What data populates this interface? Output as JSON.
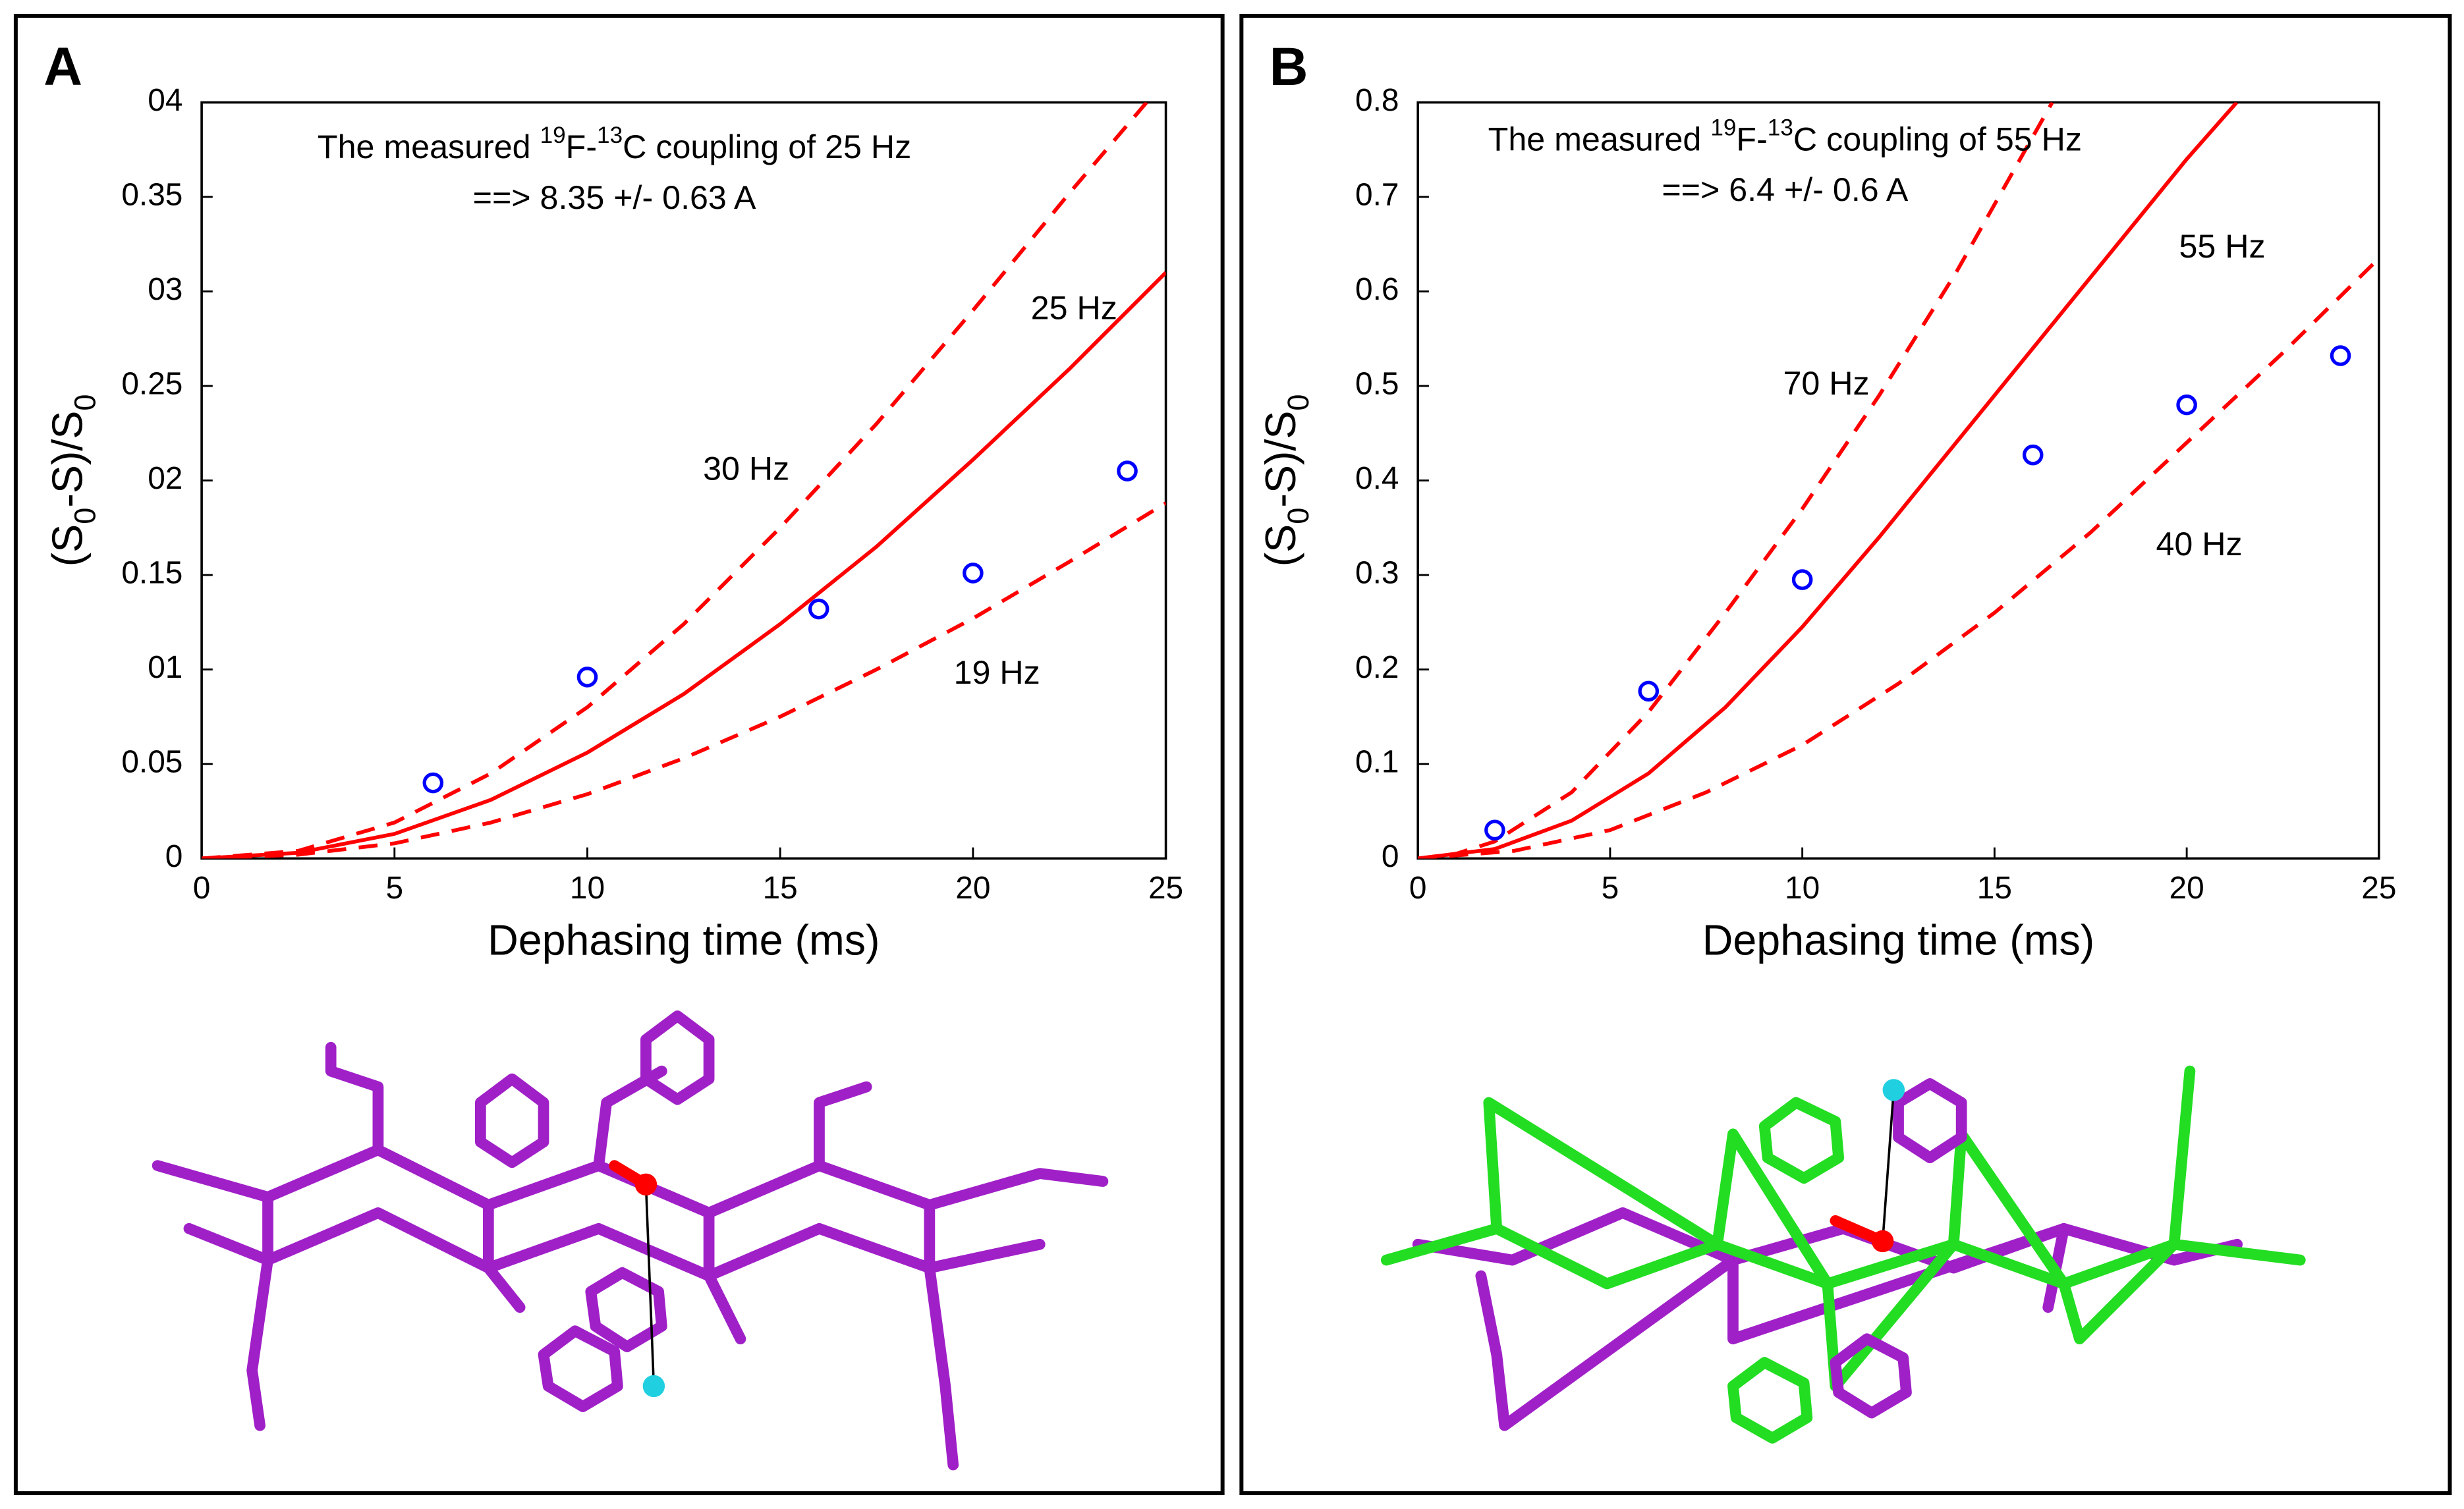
{
  "chart_data": [
    {
      "type": "line",
      "label": "A",
      "note": [
        [
          {
            "text": "The measured "
          },
          {
            "text": "19",
            "sup": true
          },
          {
            "text": "F-"
          },
          {
            "text": "13",
            "sup": true
          },
          {
            "text": "C coupling of 25 Hz"
          }
        ],
        [
          {
            "text": "==> 8.35 +/- 0.63 A"
          }
        ]
      ],
      "xlabel": "Dephasing time (ms)",
      "ylabel": [
        {
          "text": "(S"
        },
        {
          "text": "0",
          "sub": true
        },
        {
          "text": "-S)/S"
        },
        {
          "text": "0",
          "sub": true
        }
      ],
      "xlim": [
        0,
        25
      ],
      "ylim": [
        0,
        0.4
      ],
      "xticks": [
        0,
        5,
        10,
        15,
        20,
        25
      ],
      "yticks": [
        0,
        0.05,
        {
          "value": 0.1,
          "label": "01"
        },
        0.15,
        {
          "value": 0.2,
          "label": "02"
        },
        0.25,
        {
          "value": 0.3,
          "label": "03"
        },
        0.35,
        {
          "value": 0.4,
          "label": "04"
        }
      ],
      "series": [
        {
          "name": "25 Hz",
          "color": "#ff0000",
          "style": "solid",
          "x": [
            0,
            2.5,
            5,
            7.5,
            10,
            12.5,
            15,
            17.5,
            20,
            22.5,
            25
          ],
          "values": [
            0,
            0.003,
            0.013,
            0.031,
            0.056,
            0.087,
            0.124,
            0.165,
            0.211,
            0.259,
            0.31
          ]
        },
        {
          "name": "30 Hz",
          "color": "#ff0000",
          "style": "dashed",
          "x": [
            0,
            2.5,
            5,
            7.5,
            10,
            12.5,
            15,
            17.5,
            20,
            22.5,
            24.5
          ],
          "values": [
            0,
            0.004,
            0.019,
            0.045,
            0.08,
            0.124,
            0.175,
            0.23,
            0.29,
            0.352,
            0.4
          ]
        },
        {
          "name": "19 Hz",
          "color": "#ff0000",
          "style": "dashed",
          "x": [
            0,
            2.5,
            5,
            7.5,
            10,
            12.5,
            15,
            17.5,
            20,
            22.5,
            25
          ],
          "values": [
            0,
            0.002,
            0.008,
            0.019,
            0.034,
            0.053,
            0.075,
            0.1,
            0.127,
            0.157,
            0.188
          ]
        },
        {
          "color": "#0000ff",
          "style": "marker",
          "x": [
            6,
            10,
            16,
            20,
            24
          ],
          "values": [
            0.04,
            0.096,
            0.132,
            0.151,
            0.205
          ]
        }
      ]
    },
    {
      "type": "line",
      "label": "B",
      "note": [
        [
          {
            "text": "The measured "
          },
          {
            "text": "19",
            "sup": true
          },
          {
            "text": "F-"
          },
          {
            "text": "13",
            "sup": true
          },
          {
            "text": "C coupling of 55 Hz"
          }
        ],
        [
          {
            "text": "==> 6.4 +/- 0.6 A"
          }
        ]
      ],
      "xlabel": "Dephasing time (ms)",
      "ylabel": [
        {
          "text": "(S"
        },
        {
          "text": "0",
          "sub": true
        },
        {
          "text": "-S)/S"
        },
        {
          "text": "0",
          "sub": true
        }
      ],
      "xlim": [
        0,
        25
      ],
      "ylim": [
        0,
        0.8
      ],
      "xticks": [
        0,
        5,
        10,
        15,
        20,
        25
      ],
      "yticks": [
        0,
        0.1,
        0.2,
        0.3,
        0.4,
        0.5,
        0.6,
        0.7,
        0.8
      ],
      "series": [
        {
          "name": "55 Hz",
          "color": "#ff0000",
          "style": "solid",
          "x": [
            0,
            2,
            4,
            6,
            8,
            10,
            12,
            14,
            16,
            18,
            20,
            21.3
          ],
          "values": [
            0,
            0.01,
            0.04,
            0.09,
            0.16,
            0.245,
            0.34,
            0.44,
            0.54,
            0.64,
            0.74,
            0.8
          ]
        },
        {
          "name": "70 Hz",
          "color": "#ff0000",
          "style": "dashed",
          "x": [
            0,
            1,
            2,
            4,
            6,
            8,
            10,
            12,
            14,
            16.5
          ],
          "values": [
            0,
            0.005,
            0.018,
            0.07,
            0.155,
            0.26,
            0.37,
            0.49,
            0.62,
            0.8
          ]
        },
        {
          "name": "40 Hz",
          "color": "#ff0000",
          "style": "dashed",
          "x": [
            0,
            2.5,
            5,
            7.5,
            10,
            12.5,
            15,
            17.5,
            20,
            22.5,
            25
          ],
          "values": [
            0,
            0.008,
            0.03,
            0.07,
            0.12,
            0.185,
            0.26,
            0.345,
            0.44,
            0.535,
            0.635
          ]
        },
        {
          "color": "#0000ff",
          "style": "marker",
          "x": [
            2,
            6,
            10,
            16,
            20,
            24
          ],
          "values": [
            0.03,
            0.177,
            0.295,
            0.427,
            0.48,
            0.532
          ]
        }
      ]
    }
  ]
}
